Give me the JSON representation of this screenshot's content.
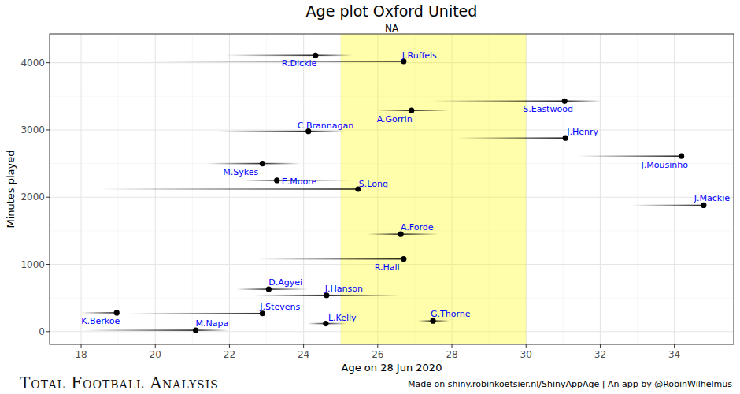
{
  "chart_data": {
    "type": "scatter",
    "title": "Age plot Oxford United",
    "subtitle": "NA",
    "x_label": "Age on 28 Jun 2020",
    "y_label": "Minutes played",
    "caption": "Made on shiny.robinkoetsier.nl/ShinyAppAge | An app by @RobinWilhelmus",
    "logo": "Total Football Analysis",
    "labels": [
      "J.Ruffels",
      "R.Dickie",
      "S.Eastwood",
      "A.Gorrin",
      "C.Brannagan",
      "J.Henry",
      "J.Mousinho",
      "M.Sykes",
      "E.Moore",
      "S.Long",
      "J.Mackie",
      "A.Forde",
      "R.Hall",
      "D.Agyei",
      "J.Hanson",
      "K.Berkoe",
      "J.Stevens",
      "M.Napa",
      "L.Kelly",
      "G.Thorne"
    ],
    "x": [
      26.7,
      24.32,
      31.04,
      26.91,
      24.13,
      31.06,
      34.19,
      22.89,
      23.28,
      25.47,
      34.79,
      26.62,
      26.7,
      23.06,
      24.62,
      18.96,
      22.89,
      21.09,
      24.6,
      27.49
    ],
    "values": [
      4020,
      4110,
      3430,
      3290,
      2980,
      2880,
      2610,
      2500,
      2250,
      2120,
      1880,
      1450,
      1080,
      630,
      540,
      280,
      270,
      20,
      120,
      160
    ],
    "age_ranges": [
      [
        19.77,
        26.7
      ],
      [
        21.87,
        25.32
      ],
      [
        27.4,
        32.04
      ],
      [
        25.98,
        27.94
      ],
      [
        21.66,
        25.11
      ],
      [
        28.11,
        31.06
      ],
      [
        31.38,
        34.19
      ],
      [
        21.4,
        23.89
      ],
      [
        22.36,
        25.28
      ],
      [
        18.45,
        25.47
      ],
      [
        32.83,
        34.79
      ],
      [
        25.72,
        27.64
      ],
      [
        22.72,
        26.7
      ],
      [
        22.19,
        24.11
      ],
      [
        22.66,
        26.62
      ],
      [
        18.0,
        18.96
      ],
      [
        19.3,
        22.89
      ],
      [
        18.04,
        21.98
      ],
      [
        24.11,
        25.17
      ],
      [
        27.09,
        27.94
      ]
    ],
    "highlight": [
      25,
      30
    ],
    "color": "#000000",
    "xlim": [
      17.15,
      35.6
    ],
    "ylim": [
      -190,
      4430
    ],
    "xticks": [
      18,
      20,
      22,
      24,
      26,
      28,
      30,
      32,
      34
    ],
    "yticks": [
      0,
      1000,
      2000,
      3000,
      4000
    ],
    "grid": true
  }
}
